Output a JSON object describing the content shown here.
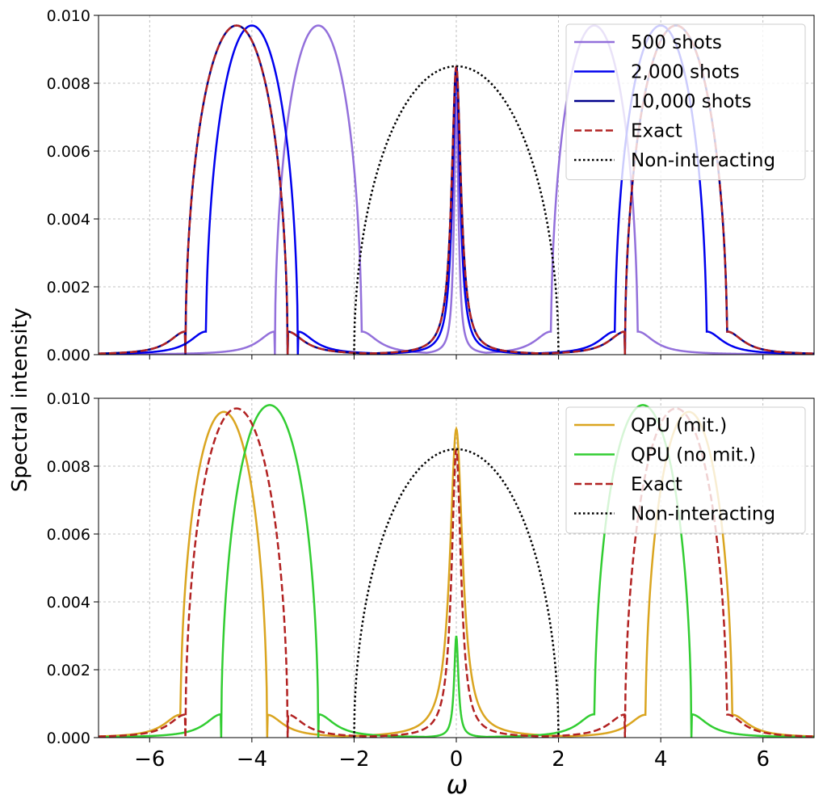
{
  "figure": {
    "ylabel": "Spectral intensity",
    "xlabel": "ω"
  },
  "chart_data": [
    {
      "type": "line",
      "panel": "top",
      "xlim": [
        -7,
        7
      ],
      "ylim": [
        0,
        0.01
      ],
      "grid": true,
      "legend_position": "top-right",
      "xticks": [
        -6,
        -4,
        -2,
        0,
        2,
        4,
        6
      ],
      "xtick_labels": [
        "",
        "",
        "",
        "",
        "",
        "",
        ""
      ],
      "yticks": [
        0,
        0.002,
        0.004,
        0.006,
        0.008,
        0.01
      ],
      "ytick_labels": [
        "0.000",
        "0.002",
        "0.004",
        "0.006",
        "0.008",
        "0.010"
      ],
      "series": [
        {
          "name": "500 shots",
          "color": "#9370DB",
          "style": "solid",
          "kind": "hubbard",
          "peaks": [
            {
              "center": -2.7,
              "height": 0.0097,
              "halfwidth": 0.85
            },
            {
              "center": 2.7,
              "height": 0.0097,
              "halfwidth": 0.85
            }
          ],
          "center_peak": {
            "height": 0.0076,
            "width": 0.05
          }
        },
        {
          "name": "2,000 shots",
          "color": "#0000EE",
          "style": "solid",
          "kind": "hubbard",
          "peaks": [
            {
              "center": -4.0,
              "height": 0.0097,
              "halfwidth": 0.9
            },
            {
              "center": 4.0,
              "height": 0.0097,
              "halfwidth": 0.9
            }
          ],
          "center_peak": {
            "height": 0.0083,
            "width": 0.09
          }
        },
        {
          "name": "10,000 shots",
          "color": "#00008B",
          "style": "solid",
          "kind": "hubbard",
          "peaks": [
            {
              "center": -4.3,
              "height": 0.0097,
              "halfwidth": 1.0
            },
            {
              "center": 4.3,
              "height": 0.0097,
              "halfwidth": 1.0
            }
          ],
          "center_peak": {
            "height": 0.0085,
            "width": 0.11
          }
        },
        {
          "name": "Exact",
          "color": "#B22222",
          "style": "dashed",
          "kind": "hubbard",
          "peaks": [
            {
              "center": -4.3,
              "height": 0.0097,
              "halfwidth": 1.0
            },
            {
              "center": 4.3,
              "height": 0.0097,
              "halfwidth": 1.0
            }
          ],
          "center_peak": {
            "height": 0.0085,
            "width": 0.11
          }
        },
        {
          "name": "Non-interacting",
          "color": "#000000",
          "style": "dotted",
          "kind": "semicircle",
          "radius": 2.0,
          "height": 0.0085
        }
      ]
    },
    {
      "type": "line",
      "panel": "bottom",
      "xlim": [
        -7,
        7
      ],
      "ylim": [
        0,
        0.01
      ],
      "grid": true,
      "legend_position": "top-right",
      "xticks": [
        -6,
        -4,
        -2,
        0,
        2,
        4,
        6
      ],
      "xtick_labels": [
        "−6",
        "−4",
        "−2",
        "0",
        "2",
        "4",
        "6"
      ],
      "yticks": [
        0,
        0.002,
        0.004,
        0.006,
        0.008,
        0.01
      ],
      "ytick_labels": [
        "0.000",
        "0.002",
        "0.004",
        "0.006",
        "0.008",
        "0.010"
      ],
      "series": [
        {
          "name": "QPU (mit.)",
          "color": "#DAA520",
          "style": "solid",
          "kind": "hubbard",
          "peaks": [
            {
              "center": -4.55,
              "height": 0.0096,
              "halfwidth": 0.85
            },
            {
              "center": 4.55,
              "height": 0.0096,
              "halfwidth": 0.85
            }
          ],
          "center_peak": {
            "height": 0.0091,
            "width": 0.15
          }
        },
        {
          "name": "QPU (no mit.)",
          "color": "#32CD32",
          "style": "solid",
          "kind": "hubbard",
          "peaks": [
            {
              "center": -3.65,
              "height": 0.0098,
              "halfwidth": 0.95
            },
            {
              "center": 3.65,
              "height": 0.0098,
              "halfwidth": 0.95
            }
          ],
          "center_peak": {
            "height": 0.003,
            "width": 0.05
          }
        },
        {
          "name": "Exact",
          "color": "#B22222",
          "style": "dashed",
          "kind": "hubbard",
          "peaks": [
            {
              "center": -4.3,
              "height": 0.0097,
              "halfwidth": 1.0
            },
            {
              "center": 4.3,
              "height": 0.0097,
              "halfwidth": 1.0
            }
          ],
          "center_peak": {
            "height": 0.0085,
            "width": 0.11
          }
        },
        {
          "name": "Non-interacting",
          "color": "#000000",
          "style": "dotted",
          "kind": "semicircle",
          "radius": 2.0,
          "height": 0.0085
        }
      ]
    }
  ]
}
